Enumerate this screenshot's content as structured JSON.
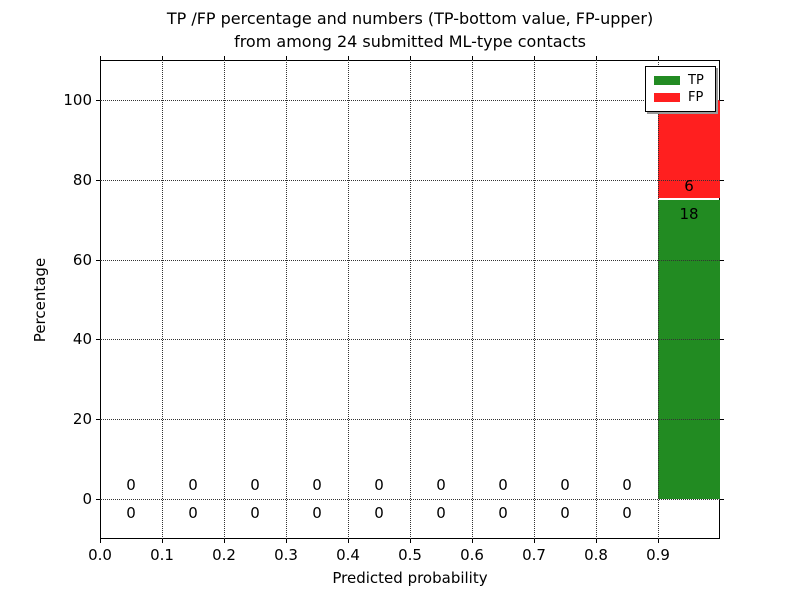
{
  "figure": {
    "title_line1": "TP /FP percentage and numbers (TP-bottom value, FP-upper)",
    "title_line2": "from among 24 submitted ML-type contacts",
    "xlabel": "Predicted probability",
    "ylabel": "Percentage"
  },
  "legend": {
    "items": [
      {
        "label": "TP",
        "color": "#228b22"
      },
      {
        "label": "FP",
        "color": "#ff1f1f"
      }
    ]
  },
  "chart_data": {
    "type": "bar",
    "stacked": true,
    "title": "TP /FP percentage and numbers (TP-bottom value, FP-upper)\nfrom among 24 submitted ML-type contacts",
    "xlabel": "Predicted probability",
    "ylabel": "Percentage",
    "total_contacts": 24,
    "xlim": [
      0.0,
      1.0
    ],
    "ylim": [
      -10,
      110
    ],
    "xticks": [
      "0.0",
      "0.1",
      "0.2",
      "0.3",
      "0.4",
      "0.5",
      "0.6",
      "0.7",
      "0.8",
      "0.9"
    ],
    "yticks": [
      0,
      20,
      40,
      60,
      80,
      100
    ],
    "grid": true,
    "legend_position": "upper right",
    "bin_edges": [
      0.0,
      0.1,
      0.2,
      0.3,
      0.4,
      0.5,
      0.6,
      0.7,
      0.8,
      0.9,
      1.0
    ],
    "series": [
      {
        "name": "TP",
        "color": "#228b22",
        "percents": [
          0,
          0,
          0,
          0,
          0,
          0,
          0,
          0,
          0,
          75
        ],
        "counts": [
          0,
          0,
          0,
          0,
          0,
          0,
          0,
          0,
          0,
          18
        ]
      },
      {
        "name": "FP",
        "color": "#ff1f1f",
        "percents": [
          0,
          0,
          0,
          0,
          0,
          0,
          0,
          0,
          0,
          25
        ],
        "counts": [
          0,
          0,
          0,
          0,
          0,
          0,
          0,
          0,
          0,
          6
        ]
      }
    ]
  }
}
